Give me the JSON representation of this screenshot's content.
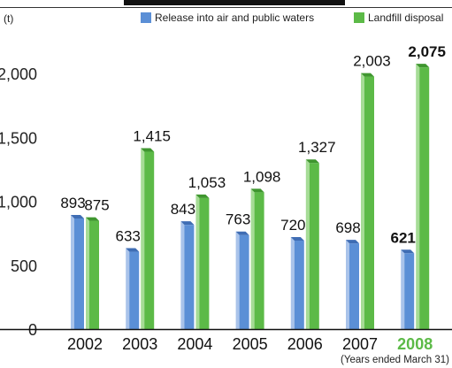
{
  "chart_data": {
    "type": "bar",
    "unit_label": "(t)",
    "categories": [
      "2002",
      "2003",
      "2004",
      "2005",
      "2006",
      "2007",
      "2008"
    ],
    "highlight_category": "2008",
    "series": [
      {
        "name": "Release into air and public waters",
        "values": [
          893,
          633,
          843,
          763,
          720,
          698,
          621
        ],
        "labels": [
          "893",
          "633",
          "843",
          "763",
          "720",
          "698",
          "621"
        ],
        "color": "#5b8fd6",
        "color_light": "#a9c3ea",
        "color_dark": "#3f6db4"
      },
      {
        "name": "Landfill disposal",
        "values": [
          875,
          1415,
          1053,
          1098,
          1327,
          2003,
          2075
        ],
        "labels": [
          "875",
          "1,415",
          "1,053",
          "1,098",
          "1,327",
          "2,003",
          "2,075"
        ],
        "color": "#5cba47",
        "color_light": "#a6dc96",
        "color_dark": "#3f962f"
      }
    ],
    "yticks": [
      0,
      500,
      1000,
      1500,
      2000
    ],
    "ytick_labels": [
      "0",
      "500",
      "1,000",
      "1,500",
      "2,000"
    ],
    "ylim": [
      0,
      2200
    ],
    "grid": false,
    "legend_position": "top-right",
    "footnote": "(Years ended March 31)",
    "highlight_color": "#5cba47"
  }
}
